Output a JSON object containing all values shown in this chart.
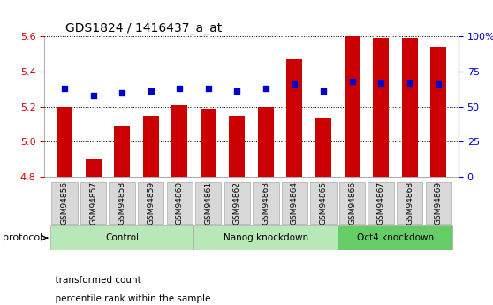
{
  "title": "GDS1824 / 1416437_a_at",
  "samples": [
    "GSM94856",
    "GSM94857",
    "GSM94858",
    "GSM94859",
    "GSM94860",
    "GSM94861",
    "GSM94862",
    "GSM94863",
    "GSM94864",
    "GSM94865",
    "GSM94866",
    "GSM94867",
    "GSM94868",
    "GSM94869"
  ],
  "transformed_count": [
    5.2,
    4.9,
    5.09,
    5.15,
    5.21,
    5.19,
    5.15,
    5.2,
    5.47,
    5.14,
    5.6,
    5.59,
    5.59,
    5.54
  ],
  "percentile_rank": [
    63,
    58,
    60,
    61,
    63,
    63,
    61,
    63,
    66,
    61,
    68,
    67,
    67,
    66
  ],
  "ylim_left": [
    4.8,
    5.6
  ],
  "ylim_right": [
    0,
    100
  ],
  "yticks_left": [
    4.8,
    5.0,
    5.2,
    5.4,
    5.6
  ],
  "yticks_right": [
    0,
    25,
    50,
    75,
    100
  ],
  "groups": [
    {
      "label": "Control",
      "start": 0,
      "end": 5,
      "color": "#b8e8b8"
    },
    {
      "label": "Nanog knockdown",
      "start": 5,
      "end": 10,
      "color": "#b8e8b8"
    },
    {
      "label": "Oct4 knockdown",
      "start": 10,
      "end": 14,
      "color": "#66cc66"
    }
  ],
  "bar_color": "#cc0000",
  "dot_color": "#0000cc",
  "bar_width": 0.55,
  "tick_label_color_left": "#cc0000",
  "tick_label_color_right": "#0000cc",
  "legend_items": [
    "transformed count",
    "percentile rank within the sample"
  ],
  "legend_colors": [
    "#cc0000",
    "#0000cc"
  ],
  "protocol_label": "protocol"
}
